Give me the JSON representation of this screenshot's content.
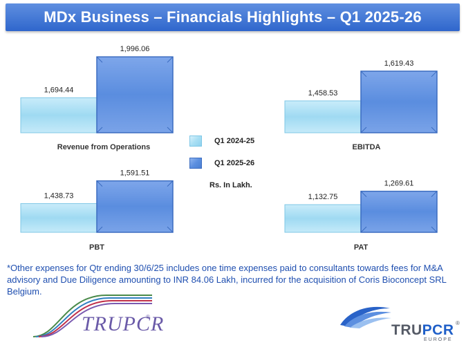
{
  "title": "MDx Business – Financials Highlights – Q1 2025-26",
  "legend": {
    "prev_label": "Q1 2024-25",
    "curr_label": "Q1 2025-26",
    "units": "Rs. In Lakh."
  },
  "chart_data": [
    {
      "type": "bar",
      "title": "Revenue from Operations",
      "categories": [
        "Q1 2024-25",
        "Q1 2025-26"
      ],
      "values": [
        1694.44,
        1996.06
      ],
      "labels": [
        "1,694.44",
        "1,996.06"
      ]
    },
    {
      "type": "bar",
      "title": "EBITDA",
      "categories": [
        "Q1 2024-25",
        "Q1 2025-26"
      ],
      "values": [
        1458.53,
        1619.43
      ],
      "labels": [
        "1,458.53",
        "1,619.43"
      ]
    },
    {
      "type": "bar",
      "title": "PBT",
      "categories": [
        "Q1 2024-25",
        "Q1 2025-26"
      ],
      "values": [
        1438.73,
        1591.51
      ],
      "labels": [
        "1,438.73",
        "1,591.51"
      ]
    },
    {
      "type": "bar",
      "title": "PAT",
      "categories": [
        "Q1 2024-25",
        "Q1 2025-26"
      ],
      "values": [
        1132.75,
        1269.61
      ],
      "labels": [
        "1,132.75",
        "1,269.61"
      ]
    }
  ],
  "colors": {
    "prev": "#a8dff4",
    "curr": "#5b8fe0",
    "title_bar": "#3a71d4",
    "footnote": "#1f4fb0"
  },
  "footnote": "*Other expenses for Qtr ending 30/6/25 includes one time expenses paid to consultants towards fees for M&A advisory and Due Diligence amounting to INR 84.06 Lakh, incurred for the acquisition of Coris Bioconcept SRL Belgium.",
  "logos": {
    "left": {
      "text": "TRUPCR",
      "reg": "®",
      "icon": "dna-helix-logo-icon"
    },
    "right": {
      "text_main": "TRU",
      "text_accent": "PCR",
      "reg": "®",
      "sub": "EUROPE",
      "icon": "wave-logo-icon"
    }
  }
}
